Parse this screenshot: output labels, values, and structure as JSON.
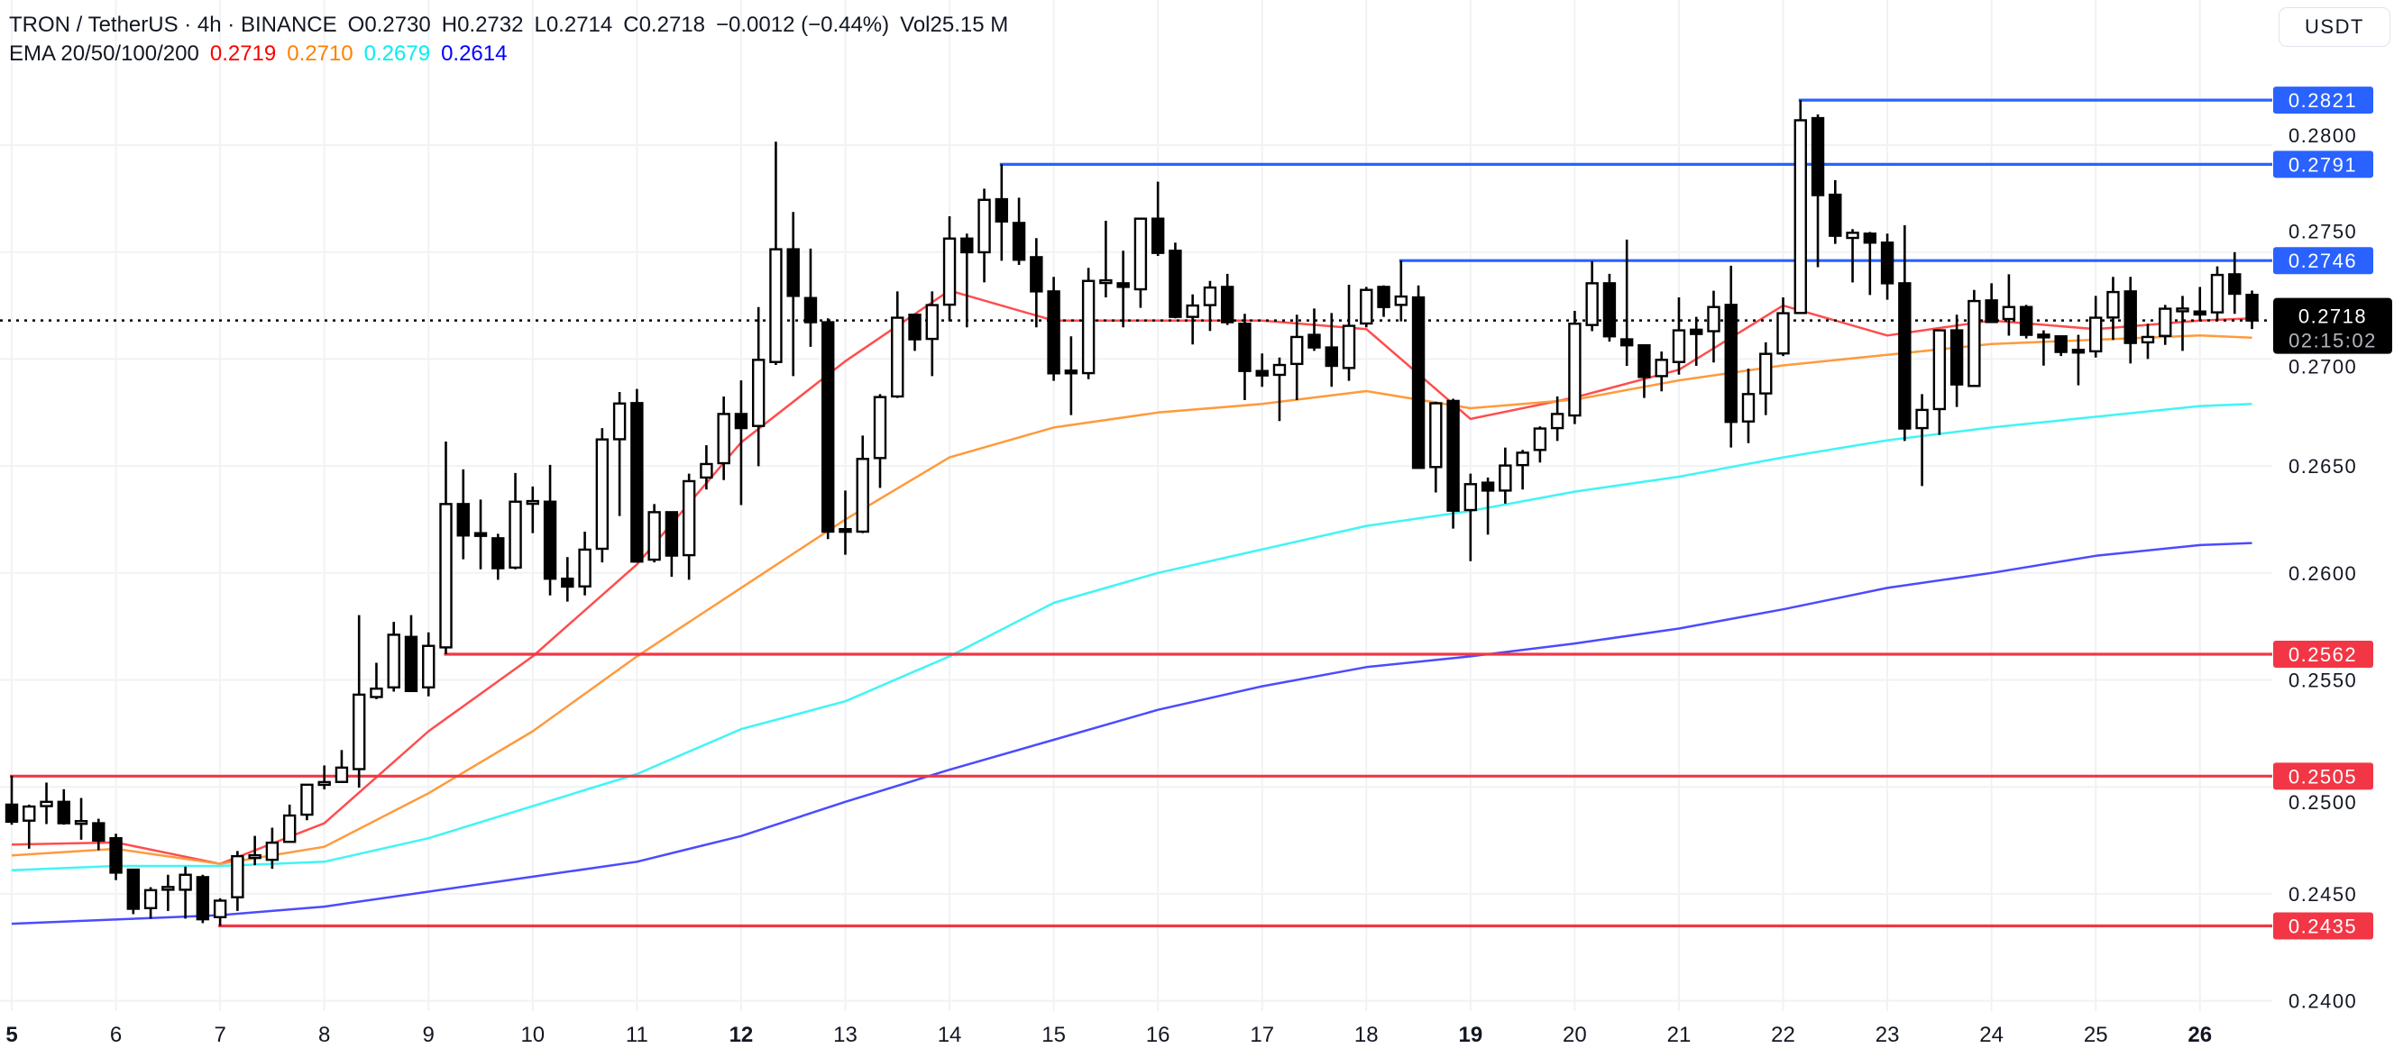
{
  "header": {
    "symbol": "TRON / TetherUS · 4h · BINANCE",
    "open": "O0.2730",
    "high": "H0.2732",
    "low": "L0.2714",
    "close": "C0.2718",
    "change": "−0.0012 (−0.44%)",
    "volume": "Vol25.15 M",
    "ema_label": "EMA 20/50/100/200",
    "ema_values": [
      {
        "text": "0.2719",
        "color": "#ff0000"
      },
      {
        "text": "0.2710",
        "color": "#ff8000"
      },
      {
        "text": "0.2679",
        "color": "#00f0f0"
      },
      {
        "text": "0.2614",
        "color": "#0000ff"
      }
    ]
  },
  "currency_button": "USDT",
  "chart_data": {
    "type": "candlestick",
    "interval": "4h",
    "fields": [
      "open",
      "high",
      "low",
      "close"
    ],
    "colors": {
      "up": "#ffffff",
      "down": "#000000",
      "outline": "#000000"
    },
    "ylim": [
      0.2375,
      0.2835
    ],
    "grid": true,
    "y_ticks": [
      "0.2400",
      "0.2450",
      "0.2500",
      "0.2550",
      "0.2600",
      "0.2650",
      "0.2700",
      "0.2750",
      "0.2800"
    ],
    "x_ticks": [
      {
        "label": "5",
        "emphasis": true
      },
      {
        "label": "6"
      },
      {
        "label": "7"
      },
      {
        "label": "8"
      },
      {
        "label": "9"
      },
      {
        "label": "10"
      },
      {
        "label": "11"
      },
      {
        "label": "12",
        "emphasis": true
      },
      {
        "label": "13"
      },
      {
        "label": "14"
      },
      {
        "label": "15"
      },
      {
        "label": "16"
      },
      {
        "label": "17"
      },
      {
        "label": "18"
      },
      {
        "label": "19",
        "emphasis": true
      },
      {
        "label": "20"
      },
      {
        "label": "21"
      },
      {
        "label": "22"
      },
      {
        "label": "23"
      },
      {
        "label": "24"
      },
      {
        "label": "25"
      },
      {
        "label": "26",
        "emphasis": true
      }
    ],
    "candles": [
      [
        0.24917,
        0.25052,
        0.24823,
        0.24837
      ],
      [
        0.24842,
        0.24917,
        0.24711,
        0.24908
      ],
      [
        0.2491,
        0.2502,
        0.24826,
        0.2493
      ],
      [
        0.2493,
        0.24989,
        0.24823,
        0.2483
      ],
      [
        0.24833,
        0.24948,
        0.24753,
        0.24834
      ],
      [
        0.2483,
        0.24851,
        0.24704,
        0.24749
      ],
      [
        0.2476,
        0.24781,
        0.24564,
        0.24599
      ],
      [
        0.24613,
        0.24613,
        0.24405,
        0.2443
      ],
      [
        0.24433,
        0.24531,
        0.24384,
        0.24517
      ],
      [
        0.24525,
        0.24589,
        0.2442,
        0.24526
      ],
      [
        0.24519,
        0.24627,
        0.24384,
        0.24589
      ],
      [
        0.24578,
        0.24589,
        0.24363,
        0.24381
      ],
      [
        0.24391,
        0.24479,
        0.2435,
        0.24468
      ],
      [
        0.24484,
        0.247,
        0.2442,
        0.24676
      ],
      [
        0.24673,
        0.24771,
        0.24634,
        0.24675
      ],
      [
        0.24659,
        0.24809,
        0.24617,
        0.24739
      ],
      [
        0.24743,
        0.24917,
        0.2474,
        0.24866
      ],
      [
        0.2487,
        0.2501,
        0.24844,
        0.2501
      ],
      [
        0.25015,
        0.251,
        0.24988,
        0.25017
      ],
      [
        0.25023,
        0.25172,
        0.2502,
        0.2509
      ],
      [
        0.25083,
        0.25803,
        0.24996,
        0.25431
      ],
      [
        0.2542,
        0.2558,
        0.2541,
        0.25459
      ],
      [
        0.25465,
        0.25771,
        0.25445,
        0.25711
      ],
      [
        0.25701,
        0.25803,
        0.25445,
        0.25448
      ],
      [
        0.25465,
        0.25722,
        0.25423,
        0.25659
      ],
      [
        0.25652,
        0.26614,
        0.2562,
        0.26322
      ],
      [
        0.26322,
        0.26484,
        0.26064,
        0.26175
      ],
      [
        0.26181,
        0.26343,
        0.26017,
        0.26178
      ],
      [
        0.26162,
        0.26183,
        0.25968,
        0.26022
      ],
      [
        0.26025,
        0.26467,
        0.26017,
        0.26333
      ],
      [
        0.26329,
        0.26404,
        0.26186,
        0.2633
      ],
      [
        0.26333,
        0.26505,
        0.25895,
        0.25973
      ],
      [
        0.25973,
        0.26074,
        0.25866,
        0.25936
      ],
      [
        0.25937,
        0.26193,
        0.25895,
        0.26109
      ],
      [
        0.26113,
        0.26677,
        0.26049,
        0.26624
      ],
      [
        0.26625,
        0.26846,
        0.26266,
        0.26792
      ],
      [
        0.26794,
        0.2686,
        0.26049,
        0.26053
      ],
      [
        0.26062,
        0.26322,
        0.26049,
        0.26284
      ],
      [
        0.26284,
        0.26284,
        0.25982,
        0.26081
      ],
      [
        0.26083,
        0.26464,
        0.25968,
        0.26429
      ],
      [
        0.26446,
        0.26597,
        0.2639,
        0.26509
      ],
      [
        0.26513,
        0.26825,
        0.26434,
        0.26743
      ],
      [
        0.26743,
        0.269,
        0.26317,
        0.26677
      ],
      [
        0.26687,
        0.27243,
        0.26499,
        0.26996
      ],
      [
        0.26986,
        0.28016,
        0.26972,
        0.27513
      ],
      [
        0.27513,
        0.27687,
        0.2692,
        0.27295
      ],
      [
        0.27285,
        0.27516,
        0.27057,
        0.27172
      ],
      [
        0.27172,
        0.2719,
        0.26158,
        0.26193
      ],
      [
        0.26199,
        0.26385,
        0.26085,
        0.26198
      ],
      [
        0.26193,
        0.26642,
        0.26186,
        0.26533
      ],
      [
        0.26537,
        0.26836,
        0.26397,
        0.26822
      ],
      [
        0.26825,
        0.27316,
        0.26818,
        0.27193
      ],
      [
        0.27207,
        0.27207,
        0.27038,
        0.27092
      ],
      [
        0.27094,
        0.27316,
        0.2692,
        0.27252
      ],
      [
        0.27254,
        0.27667,
        0.27176,
        0.27563
      ],
      [
        0.27563,
        0.27586,
        0.27148,
        0.27499
      ],
      [
        0.27499,
        0.27796,
        0.27358,
        0.27744
      ],
      [
        0.27747,
        0.2791,
        0.27459,
        0.27643
      ],
      [
        0.27636,
        0.27754,
        0.2744,
        0.27464
      ],
      [
        0.27476,
        0.27565,
        0.27148,
        0.27316
      ],
      [
        0.27316,
        0.27384,
        0.26898,
        0.26933
      ],
      [
        0.2694,
        0.27106,
        0.26738,
        0.26939
      ],
      [
        0.26934,
        0.27426,
        0.26906,
        0.27365
      ],
      [
        0.27361,
        0.27646,
        0.27288,
        0.27362
      ],
      [
        0.27354,
        0.27506,
        0.27148,
        0.27337
      ],
      [
        0.27326,
        0.27656,
        0.27239,
        0.27656
      ],
      [
        0.27656,
        0.27829,
        0.27482,
        0.27496
      ],
      [
        0.27506,
        0.27544,
        0.2719,
        0.27197
      ],
      [
        0.27197,
        0.27302,
        0.27068,
        0.2725
      ],
      [
        0.27252,
        0.27365,
        0.27131,
        0.27334
      ],
      [
        0.27337,
        0.27398,
        0.27159,
        0.27172
      ],
      [
        0.27165,
        0.27211,
        0.26808,
        0.26944
      ],
      [
        0.26944,
        0.27026,
        0.2687,
        0.26923
      ],
      [
        0.26926,
        0.27007,
        0.2671,
        0.26972
      ],
      [
        0.26977,
        0.27207,
        0.26808,
        0.27103
      ],
      [
        0.27113,
        0.27236,
        0.27038,
        0.27054
      ],
      [
        0.27054,
        0.27215,
        0.2687,
        0.26968
      ],
      [
        0.26958,
        0.27347,
        0.26898,
        0.27155
      ],
      [
        0.27166,
        0.27337,
        0.27148,
        0.27323
      ],
      [
        0.27337,
        0.27344,
        0.27197,
        0.27243
      ],
      [
        0.27253,
        0.2746,
        0.27176,
        0.27292
      ],
      [
        0.27288,
        0.27344,
        0.26488,
        0.26491
      ],
      [
        0.26495,
        0.268,
        0.26376,
        0.26793
      ],
      [
        0.26804,
        0.26814,
        0.26207,
        0.26291
      ],
      [
        0.26294,
        0.26464,
        0.26055,
        0.26415
      ],
      [
        0.26422,
        0.26446,
        0.26179,
        0.26385
      ],
      [
        0.26385,
        0.26586,
        0.26324,
        0.26502
      ],
      [
        0.26504,
        0.26575,
        0.2639,
        0.26562
      ],
      [
        0.26575,
        0.26685,
        0.26516,
        0.26675
      ],
      [
        0.26677,
        0.26825,
        0.26617,
        0.26743
      ],
      [
        0.26736,
        0.27225,
        0.26696,
        0.27165
      ],
      [
        0.27159,
        0.27457,
        0.2713,
        0.27354
      ],
      [
        0.27354,
        0.27398,
        0.27081,
        0.27106
      ],
      [
        0.27092,
        0.27558,
        0.26968,
        0.27064
      ],
      [
        0.27064,
        0.27064,
        0.26818,
        0.26916
      ],
      [
        0.2692,
        0.27035,
        0.26849,
        0.26996
      ],
      [
        0.26986,
        0.27288,
        0.26927,
        0.27134
      ],
      [
        0.27137,
        0.27197,
        0.26968,
        0.27117
      ],
      [
        0.2713,
        0.27319,
        0.26984,
        0.27243
      ],
      [
        0.27253,
        0.27436,
        0.26586,
        0.26706
      ],
      [
        0.26708,
        0.26955,
        0.26607,
        0.26836
      ],
      [
        0.26839,
        0.27078,
        0.26738,
        0.27024
      ],
      [
        0.27026,
        0.27288,
        0.27014,
        0.27214
      ],
      [
        0.27215,
        0.2821,
        0.27211,
        0.28116
      ],
      [
        0.28126,
        0.28143,
        0.27429,
        0.27766
      ],
      [
        0.27768,
        0.27836,
        0.27538,
        0.27576
      ],
      [
        0.27566,
        0.27607,
        0.27358,
        0.2759
      ],
      [
        0.27586,
        0.27594,
        0.27299,
        0.27544
      ],
      [
        0.27544,
        0.27586,
        0.27277,
        0.27354
      ],
      [
        0.27354,
        0.27625,
        0.26617,
        0.26675
      ],
      [
        0.26677,
        0.26836,
        0.26406,
        0.26762
      ],
      [
        0.26766,
        0.27134,
        0.26645,
        0.27134
      ],
      [
        0.27134,
        0.27207,
        0.26776,
        0.26881
      ],
      [
        0.26874,
        0.27323,
        0.2687,
        0.27271
      ],
      [
        0.27274,
        0.27354,
        0.27169,
        0.27173
      ],
      [
        0.27187,
        0.27396,
        0.27109,
        0.27243
      ],
      [
        0.27243,
        0.27253,
        0.27096,
        0.27113
      ],
      [
        0.27108,
        0.27134,
        0.26969,
        0.27107
      ],
      [
        0.27106,
        0.27106,
        0.27014,
        0.27033
      ],
      [
        0.27037,
        0.27113,
        0.26877,
        0.27036
      ],
      [
        0.27036,
        0.27295,
        0.27007,
        0.27193
      ],
      [
        0.27194,
        0.27384,
        0.27089,
        0.27313
      ],
      [
        0.27316,
        0.27384,
        0.26979,
        0.27075
      ],
      [
        0.27078,
        0.27165,
        0.27,
        0.27103
      ],
      [
        0.27108,
        0.27253,
        0.27066,
        0.27235
      ],
      [
        0.27229,
        0.27295,
        0.27038,
        0.2723
      ],
      [
        0.27222,
        0.27337,
        0.27179,
        0.27208
      ],
      [
        0.27218,
        0.27433,
        0.27179,
        0.27393
      ],
      [
        0.27396,
        0.27499,
        0.27211,
        0.27305
      ],
      [
        0.273,
        0.2732,
        0.2714,
        0.2718
      ]
    ],
    "ema_lines": [
      {
        "period": 20,
        "color": "#ff4d4d",
        "values_at_day_ticks": [
          0.2473,
          0.2474,
          0.2464,
          0.2483,
          0.2526,
          0.2561,
          0.2604,
          0.2661,
          0.2699,
          0.2732,
          0.2718,
          0.2718,
          0.2718,
          0.2714,
          0.2672,
          0.2682,
          0.2695,
          0.2725,
          0.2711,
          0.2718,
          0.2714,
          0.2718
        ],
        "last": 0.2719
      },
      {
        "period": 50,
        "color": "#ff9a3c",
        "values_at_day_ticks": [
          0.2468,
          0.2471,
          0.2464,
          0.2472,
          0.2497,
          0.2526,
          0.2561,
          0.2593,
          0.2625,
          0.2654,
          0.2668,
          0.2675,
          0.2679,
          0.2685,
          0.2677,
          0.2681,
          0.269,
          0.2697,
          0.2702,
          0.2707,
          0.2709,
          0.2711
        ],
        "last": 0.271
      },
      {
        "period": 100,
        "color": "#40f5f5",
        "values_at_day_ticks": [
          0.2461,
          0.2463,
          0.2463,
          0.2465,
          0.2476,
          0.2491,
          0.2506,
          0.2527,
          0.254,
          0.2561,
          0.2586,
          0.26,
          0.2611,
          0.2622,
          0.2629,
          0.2638,
          0.2645,
          0.2654,
          0.2662,
          0.2668,
          0.2673,
          0.2678
        ],
        "last": 0.2679
      },
      {
        "period": 200,
        "color": "#4b4bff",
        "values_at_day_ticks": [
          0.2436,
          0.2438,
          0.244,
          0.2444,
          0.2451,
          0.2458,
          0.2465,
          0.2477,
          0.2493,
          0.2508,
          0.2522,
          0.2536,
          0.2547,
          0.2556,
          0.2561,
          0.2567,
          0.2574,
          0.2583,
          0.2593,
          0.26,
          0.2608,
          0.2613
        ],
        "last": 0.2614
      }
    ],
    "price_levels": [
      {
        "label": "0.2821",
        "value": 0.2821,
        "from_candle": 103,
        "color": "#2962ff"
      },
      {
        "label": "0.2791",
        "value": 0.2791,
        "from_candle": 57,
        "color": "#2962ff"
      },
      {
        "label": "0.2746",
        "value": 0.2746,
        "from_candle": 80,
        "color": "#2962ff"
      },
      {
        "label": "0.2562",
        "value": 0.2562,
        "from_candle": 25,
        "color": "#f23645"
      },
      {
        "label": "0.2505",
        "value": 0.2505,
        "from_candle": 0,
        "color": "#f23645"
      },
      {
        "label": "0.2435",
        "value": 0.2435,
        "from_candle": 12,
        "color": "#f23645"
      }
    ],
    "current_price": {
      "label": "0.2718",
      "value": 0.2718,
      "countdown": "02:15:02"
    }
  }
}
